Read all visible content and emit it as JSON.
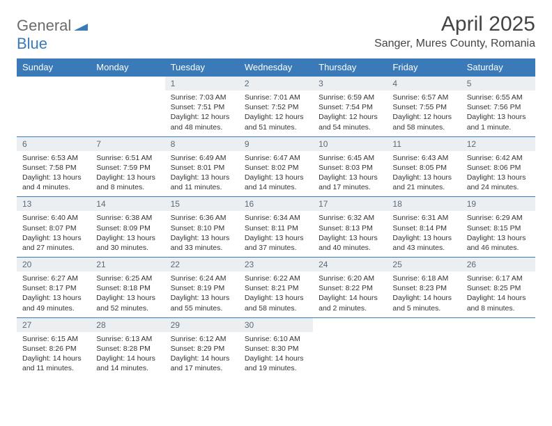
{
  "logo": {
    "general": "General",
    "blue": "Blue",
    "shape_color": "#3a7ab8"
  },
  "title": {
    "month": "April 2025",
    "location": "Sanger, Mures County, Romania"
  },
  "colors": {
    "header_bg": "#3a7ab8",
    "header_fg": "#ffffff",
    "daynum_bg": "#eceff1",
    "daynum_fg": "#5a6a78",
    "border": "#3a7ab8",
    "text": "#333333"
  },
  "weekdays": [
    "Sunday",
    "Monday",
    "Tuesday",
    "Wednesday",
    "Thursday",
    "Friday",
    "Saturday"
  ],
  "weeks": [
    [
      null,
      null,
      {
        "n": "1",
        "sunrise": "Sunrise: 7:03 AM",
        "sunset": "Sunset: 7:51 PM",
        "daylight": "Daylight: 12 hours and 48 minutes."
      },
      {
        "n": "2",
        "sunrise": "Sunrise: 7:01 AM",
        "sunset": "Sunset: 7:52 PM",
        "daylight": "Daylight: 12 hours and 51 minutes."
      },
      {
        "n": "3",
        "sunrise": "Sunrise: 6:59 AM",
        "sunset": "Sunset: 7:54 PM",
        "daylight": "Daylight: 12 hours and 54 minutes."
      },
      {
        "n": "4",
        "sunrise": "Sunrise: 6:57 AM",
        "sunset": "Sunset: 7:55 PM",
        "daylight": "Daylight: 12 hours and 58 minutes."
      },
      {
        "n": "5",
        "sunrise": "Sunrise: 6:55 AM",
        "sunset": "Sunset: 7:56 PM",
        "daylight": "Daylight: 13 hours and 1 minute."
      }
    ],
    [
      {
        "n": "6",
        "sunrise": "Sunrise: 6:53 AM",
        "sunset": "Sunset: 7:58 PM",
        "daylight": "Daylight: 13 hours and 4 minutes."
      },
      {
        "n": "7",
        "sunrise": "Sunrise: 6:51 AM",
        "sunset": "Sunset: 7:59 PM",
        "daylight": "Daylight: 13 hours and 8 minutes."
      },
      {
        "n": "8",
        "sunrise": "Sunrise: 6:49 AM",
        "sunset": "Sunset: 8:01 PM",
        "daylight": "Daylight: 13 hours and 11 minutes."
      },
      {
        "n": "9",
        "sunrise": "Sunrise: 6:47 AM",
        "sunset": "Sunset: 8:02 PM",
        "daylight": "Daylight: 13 hours and 14 minutes."
      },
      {
        "n": "10",
        "sunrise": "Sunrise: 6:45 AM",
        "sunset": "Sunset: 8:03 PM",
        "daylight": "Daylight: 13 hours and 17 minutes."
      },
      {
        "n": "11",
        "sunrise": "Sunrise: 6:43 AM",
        "sunset": "Sunset: 8:05 PM",
        "daylight": "Daylight: 13 hours and 21 minutes."
      },
      {
        "n": "12",
        "sunrise": "Sunrise: 6:42 AM",
        "sunset": "Sunset: 8:06 PM",
        "daylight": "Daylight: 13 hours and 24 minutes."
      }
    ],
    [
      {
        "n": "13",
        "sunrise": "Sunrise: 6:40 AM",
        "sunset": "Sunset: 8:07 PM",
        "daylight": "Daylight: 13 hours and 27 minutes."
      },
      {
        "n": "14",
        "sunrise": "Sunrise: 6:38 AM",
        "sunset": "Sunset: 8:09 PM",
        "daylight": "Daylight: 13 hours and 30 minutes."
      },
      {
        "n": "15",
        "sunrise": "Sunrise: 6:36 AM",
        "sunset": "Sunset: 8:10 PM",
        "daylight": "Daylight: 13 hours and 33 minutes."
      },
      {
        "n": "16",
        "sunrise": "Sunrise: 6:34 AM",
        "sunset": "Sunset: 8:11 PM",
        "daylight": "Daylight: 13 hours and 37 minutes."
      },
      {
        "n": "17",
        "sunrise": "Sunrise: 6:32 AM",
        "sunset": "Sunset: 8:13 PM",
        "daylight": "Daylight: 13 hours and 40 minutes."
      },
      {
        "n": "18",
        "sunrise": "Sunrise: 6:31 AM",
        "sunset": "Sunset: 8:14 PM",
        "daylight": "Daylight: 13 hours and 43 minutes."
      },
      {
        "n": "19",
        "sunrise": "Sunrise: 6:29 AM",
        "sunset": "Sunset: 8:15 PM",
        "daylight": "Daylight: 13 hours and 46 minutes."
      }
    ],
    [
      {
        "n": "20",
        "sunrise": "Sunrise: 6:27 AM",
        "sunset": "Sunset: 8:17 PM",
        "daylight": "Daylight: 13 hours and 49 minutes."
      },
      {
        "n": "21",
        "sunrise": "Sunrise: 6:25 AM",
        "sunset": "Sunset: 8:18 PM",
        "daylight": "Daylight: 13 hours and 52 minutes."
      },
      {
        "n": "22",
        "sunrise": "Sunrise: 6:24 AM",
        "sunset": "Sunset: 8:19 PM",
        "daylight": "Daylight: 13 hours and 55 minutes."
      },
      {
        "n": "23",
        "sunrise": "Sunrise: 6:22 AM",
        "sunset": "Sunset: 8:21 PM",
        "daylight": "Daylight: 13 hours and 58 minutes."
      },
      {
        "n": "24",
        "sunrise": "Sunrise: 6:20 AM",
        "sunset": "Sunset: 8:22 PM",
        "daylight": "Daylight: 14 hours and 2 minutes."
      },
      {
        "n": "25",
        "sunrise": "Sunrise: 6:18 AM",
        "sunset": "Sunset: 8:23 PM",
        "daylight": "Daylight: 14 hours and 5 minutes."
      },
      {
        "n": "26",
        "sunrise": "Sunrise: 6:17 AM",
        "sunset": "Sunset: 8:25 PM",
        "daylight": "Daylight: 14 hours and 8 minutes."
      }
    ],
    [
      {
        "n": "27",
        "sunrise": "Sunrise: 6:15 AM",
        "sunset": "Sunset: 8:26 PM",
        "daylight": "Daylight: 14 hours and 11 minutes."
      },
      {
        "n": "28",
        "sunrise": "Sunrise: 6:13 AM",
        "sunset": "Sunset: 8:28 PM",
        "daylight": "Daylight: 14 hours and 14 minutes."
      },
      {
        "n": "29",
        "sunrise": "Sunrise: 6:12 AM",
        "sunset": "Sunset: 8:29 PM",
        "daylight": "Daylight: 14 hours and 17 minutes."
      },
      {
        "n": "30",
        "sunrise": "Sunrise: 6:10 AM",
        "sunset": "Sunset: 8:30 PM",
        "daylight": "Daylight: 14 hours and 19 minutes."
      },
      null,
      null,
      null
    ]
  ]
}
